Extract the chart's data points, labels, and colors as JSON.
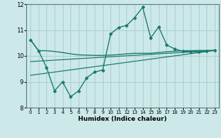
{
  "title": "",
  "xlabel": "Humidex (Indice chaleur)",
  "ylabel": "",
  "bg_color": "#cce8e8",
  "grid_color": "#aacfcf",
  "line_color": "#1a7a6e",
  "xlim": [
    -0.5,
    23.5
  ],
  "ylim": [
    8,
    12
  ],
  "yticks": [
    8,
    9,
    10,
    11,
    12
  ],
  "xticks": [
    0,
    1,
    2,
    3,
    4,
    5,
    6,
    7,
    8,
    9,
    10,
    11,
    12,
    13,
    14,
    15,
    16,
    17,
    18,
    19,
    20,
    21,
    22,
    23
  ],
  "series": [
    {
      "x": [
        0,
        1,
        2,
        3,
        4,
        5,
        6,
        7,
        8,
        9,
        10,
        11,
        12,
        13,
        14,
        15,
        16,
        17,
        18,
        19,
        20,
        21,
        22,
        23
      ],
      "y": [
        10.62,
        10.2,
        10.2,
        10.17,
        10.13,
        10.08,
        10.04,
        10.03,
        10.02,
        10.02,
        10.03,
        10.05,
        10.08,
        10.1,
        10.1,
        10.1,
        10.13,
        10.16,
        10.18,
        10.2,
        10.2,
        10.21,
        10.21,
        10.21
      ],
      "marker": false,
      "linewidth": 1.0
    },
    {
      "x": [
        0,
        1,
        2,
        3,
        4,
        5,
        6,
        7,
        8,
        9,
        10,
        11,
        12,
        13,
        14,
        15,
        16,
        17,
        18,
        19,
        20,
        21,
        22,
        23
      ],
      "y": [
        10.62,
        10.2,
        9.55,
        8.65,
        9.0,
        8.42,
        8.65,
        9.15,
        9.38,
        9.45,
        10.85,
        11.1,
        11.18,
        11.48,
        11.88,
        10.7,
        11.12,
        10.42,
        10.27,
        10.18,
        10.16,
        10.16,
        10.2,
        10.21
      ],
      "marker": true,
      "linewidth": 1.0
    },
    {
      "x": [
        0,
        23
      ],
      "y": [
        9.25,
        10.21
      ],
      "marker": false,
      "linewidth": 0.9
    },
    {
      "x": [
        0,
        23
      ],
      "y": [
        9.78,
        10.21
      ],
      "marker": false,
      "linewidth": 0.9
    }
  ]
}
